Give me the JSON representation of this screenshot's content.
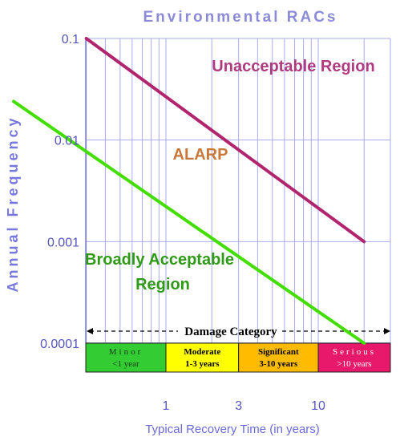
{
  "chart_data": {
    "type": "line",
    "title": "Environmental RACs",
    "xlabel": "Typical Recovery Time (in years)",
    "ylabel": "Annual Frequency",
    "x_scale": "log",
    "y_scale": "log",
    "xlim": [
      0.1,
      30
    ],
    "ylim": [
      0.0001,
      0.1
    ],
    "x_ticks": [
      {
        "value": 1,
        "label": "1"
      },
      {
        "value": 3,
        "label": "3"
      },
      {
        "value": 10,
        "label": "10"
      }
    ],
    "y_ticks": [
      {
        "value": 0.1,
        "label": "0.1"
      },
      {
        "value": 0.01,
        "label": "0.01"
      },
      {
        "value": 0.001,
        "label": "0.001"
      },
      {
        "value": 0.0001,
        "label": "0.0001"
      }
    ],
    "grid": true,
    "series": [
      {
        "color": "#b0256e",
        "points": [
          [
            0.3,
            0.1
          ],
          [
            20,
            0.001
          ]
        ]
      },
      {
        "color": "#44dd00",
        "points": [
          [
            0.1,
            0.024
          ],
          [
            20,
            0.0001
          ]
        ]
      }
    ],
    "annotations": [
      {
        "text": "Unacceptable Region",
        "color": "#b03a80"
      },
      {
        "text": "ALARP",
        "color": "#c87838"
      },
      {
        "text": "Broadly Acceptable",
        "color": "#2e9a16"
      },
      {
        "text": "Region",
        "color": "#2e9a16"
      }
    ],
    "damage_category": {
      "title": "Damage Category",
      "categories": [
        {
          "name": "Minor",
          "range": "<1 year",
          "color": "#33cc33",
          "text_color": "#1a3a1a"
        },
        {
          "name": "Moderate",
          "range": "1-3 years",
          "color": "#ffff00",
          "text_color": "#000000"
        },
        {
          "name": "Significant",
          "range": "3-10 years",
          "color": "#ffbb00",
          "text_color": "#000000"
        },
        {
          "name": "Serious",
          "range": ">10 years",
          "color": "#e8186a",
          "text_color": "#ffffff"
        }
      ]
    }
  }
}
